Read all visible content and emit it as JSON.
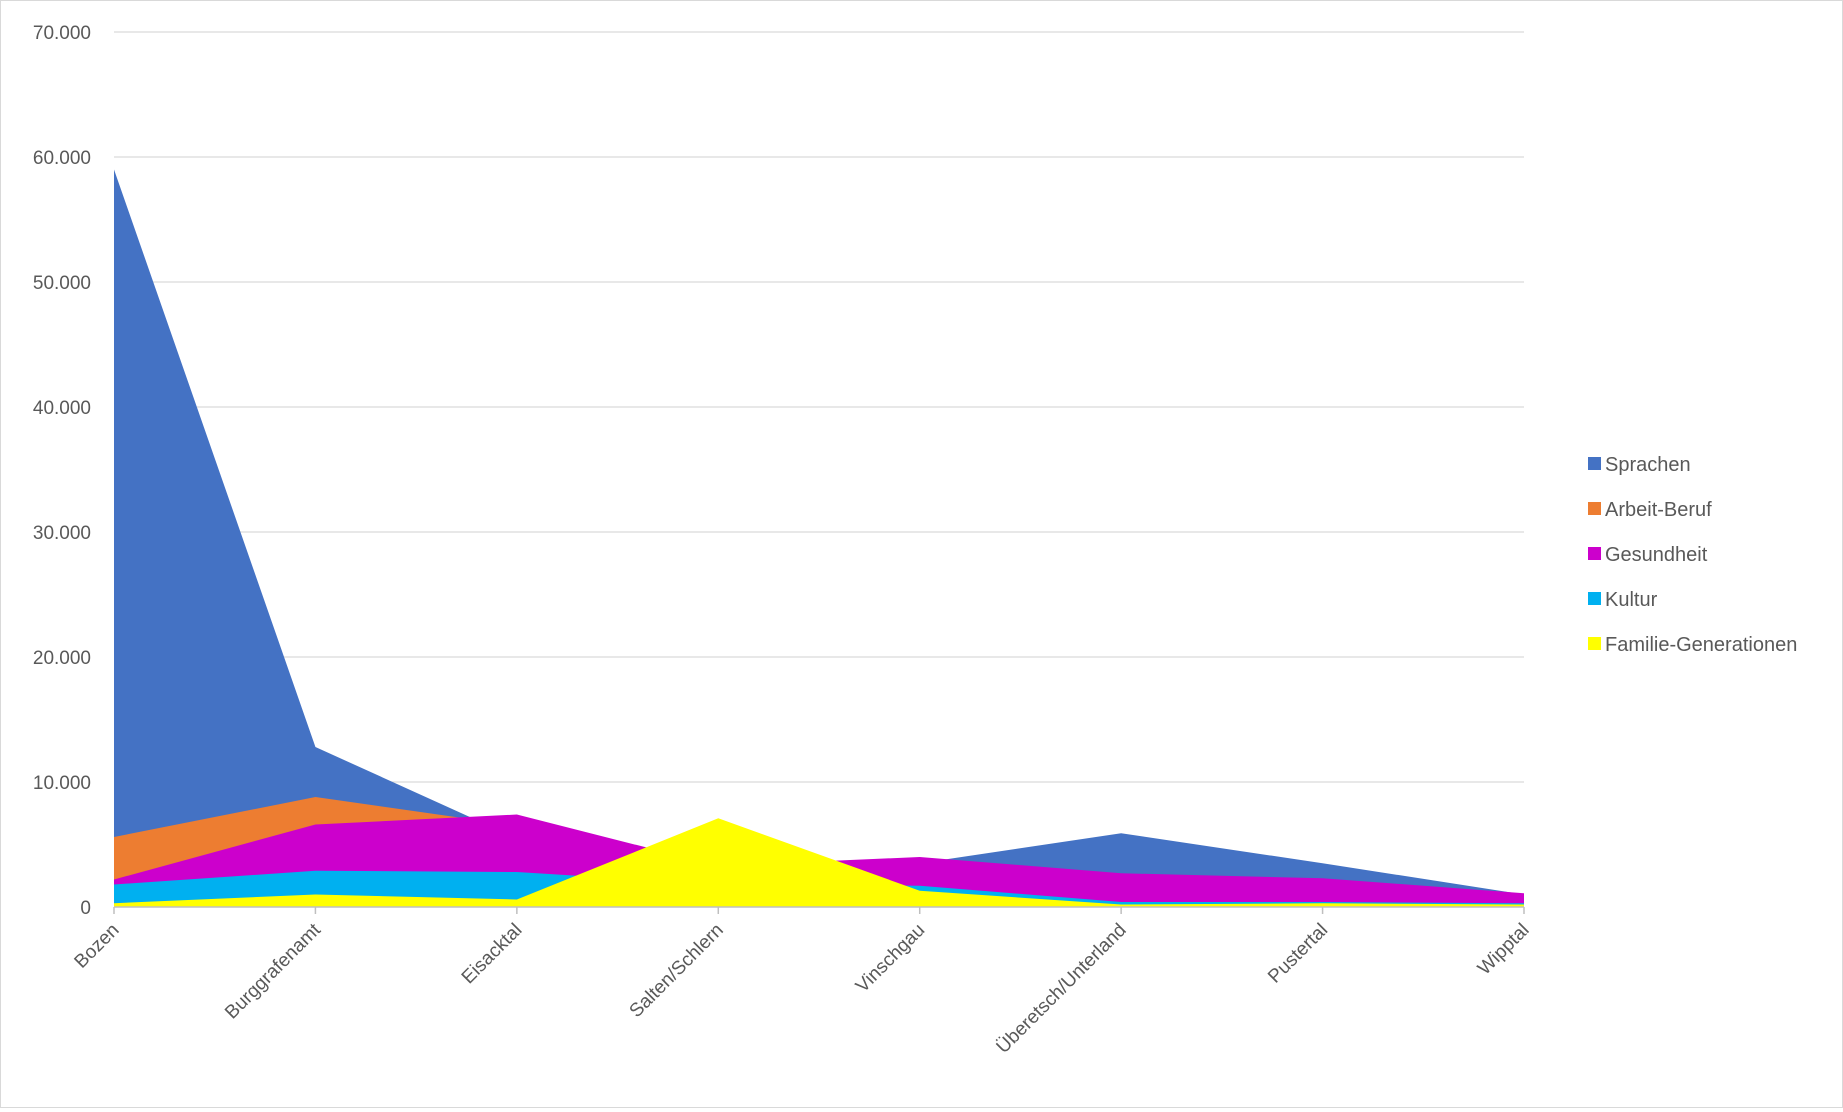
{
  "chart_data": {
    "type": "area",
    "categories": [
      "Bozen",
      "Burggrafenamt",
      "Eisacktal",
      "Salten/Schlern",
      "Vinschgau",
      "Überetsch/Unterland",
      "Pustertal",
      "Wipptal"
    ],
    "y_tick_labels": [
      "0",
      "10.000",
      "20.000",
      "30.000",
      "40.000",
      "50.000",
      "60.000",
      "70.000"
    ],
    "ylim": [
      0,
      70000
    ],
    "grid": true,
    "legend_position": "right",
    "series": [
      {
        "name": "Sprachen",
        "color": "#4472C4",
        "values": [
          59000,
          12800,
          5500,
          2800,
          3500,
          5900,
          3500,
          1000
        ]
      },
      {
        "name": "Arbeit-Beruf",
        "color": "#ED7D31",
        "values": [
          5600,
          8800,
          6500,
          2500,
          3200,
          2500,
          2000,
          600
        ]
      },
      {
        "name": "Gesundheit",
        "color": "#CC00CC",
        "values": [
          2200,
          6600,
          7400,
          3300,
          4000,
          2700,
          2300,
          1100
        ]
      },
      {
        "name": "Kultur",
        "color": "#00B0F0",
        "values": [
          1800,
          2900,
          2800,
          1800,
          1700,
          400,
          400,
          300
        ]
      },
      {
        "name": "Familie-Generationen",
        "color": "#FFFF00",
        "values": [
          300,
          1000,
          600,
          7100,
          1300,
          200,
          300,
          200
        ]
      }
    ]
  }
}
